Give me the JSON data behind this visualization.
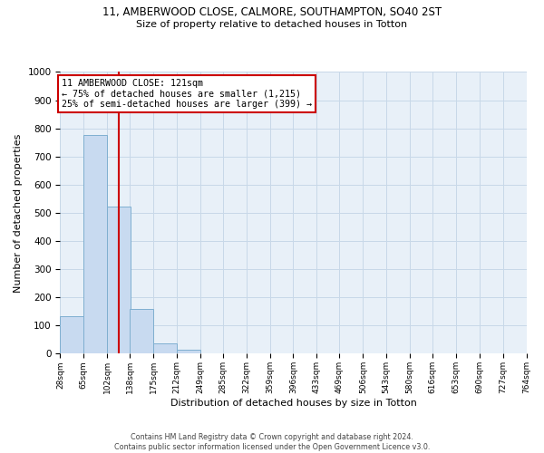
{
  "title_line1": "11, AMBERWOOD CLOSE, CALMORE, SOUTHAMPTON, SO40 2ST",
  "title_line2": "Size of property relative to detached houses in Totton",
  "xlabel": "Distribution of detached houses by size in Totton",
  "ylabel": "Number of detached properties",
  "footnote": "Contains HM Land Registry data © Crown copyright and database right 2024.\nContains public sector information licensed under the Open Government Licence v3.0.",
  "bin_edges": [
    28,
    65,
    102,
    138,
    175,
    212,
    249,
    285,
    322,
    359,
    396,
    433,
    469,
    506,
    543,
    580,
    616,
    653,
    690,
    727,
    764
  ],
  "bar_values": [
    133,
    778,
    524,
    159,
    37,
    15,
    0,
    0,
    0,
    0,
    0,
    0,
    0,
    0,
    0,
    0,
    0,
    0,
    0,
    0
  ],
  "bar_color": "#c8daf0",
  "bar_edge_color": "#7fafd0",
  "property_size": 121,
  "red_line_color": "#cc0000",
  "annotation_line1": "11 AMBERWOOD CLOSE: 121sqm",
  "annotation_line2": "← 75% of detached houses are smaller (1,215)",
  "annotation_line3": "25% of semi-detached houses are larger (399) →",
  "annotation_box_color": "#cc0000",
  "ylim": [
    0,
    1000
  ],
  "yticks": [
    0,
    100,
    200,
    300,
    400,
    500,
    600,
    700,
    800,
    900,
    1000
  ],
  "grid_color": "#c8d8e8",
  "background_color": "#e8f0f8",
  "title1_fontsize": 8.5,
  "title2_fontsize": 8.0,
  "footnote_fontsize": 5.8,
  "ylabel_fontsize": 8.0,
  "xlabel_fontsize": 8.0
}
